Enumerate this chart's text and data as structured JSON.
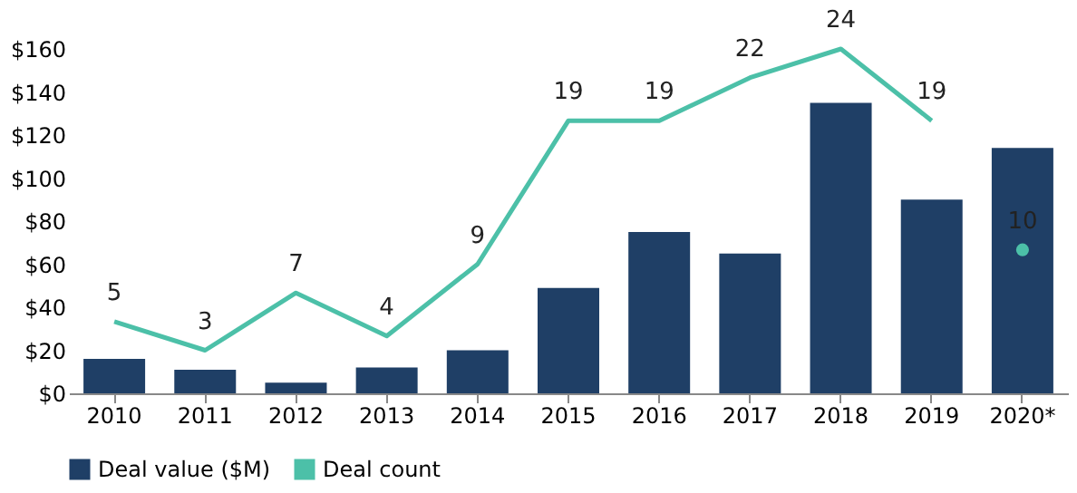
{
  "chart_data": {
    "type": "bar",
    "categories": [
      "2010",
      "2011",
      "2012",
      "2013",
      "2014",
      "2015",
      "2016",
      "2017",
      "2018",
      "2019",
      "2020*"
    ],
    "series": [
      {
        "name": "Deal value ($M)",
        "color": "#1f3f66",
        "values": [
          16,
          11,
          5,
          12,
          20,
          49,
          75,
          65,
          135,
          90,
          114
        ]
      },
      {
        "name": "Deal count",
        "type": "line",
        "axis": "y2",
        "color": "#4cc0a8",
        "data_labels": true,
        "values": [
          5,
          3,
          7,
          4,
          9,
          19,
          19,
          22,
          24,
          19,
          null
        ]
      },
      {
        "type": "scatter",
        "axis": "y2",
        "color": "#4cc0a8",
        "marker": "circle",
        "data_labels": true,
        "values": [
          null,
          null,
          null,
          null,
          null,
          null,
          null,
          null,
          null,
          null,
          10
        ]
      }
    ],
    "ylim": [
      0,
      160
    ],
    "yticks": [
      {
        "value": 0,
        "label": "$0"
      },
      {
        "value": 20,
        "label": "$20"
      },
      {
        "value": 40,
        "label": "$40"
      },
      {
        "value": 60,
        "label": "$60"
      },
      {
        "value": 80,
        "label": "$80"
      },
      {
        "value": 100,
        "label": "$100"
      },
      {
        "value": 120,
        "label": "$120"
      },
      {
        "value": 140,
        "label": "$140"
      },
      {
        "value": 160,
        "label": "$160"
      }
    ],
    "legend": "bottom",
    "grid": false
  }
}
